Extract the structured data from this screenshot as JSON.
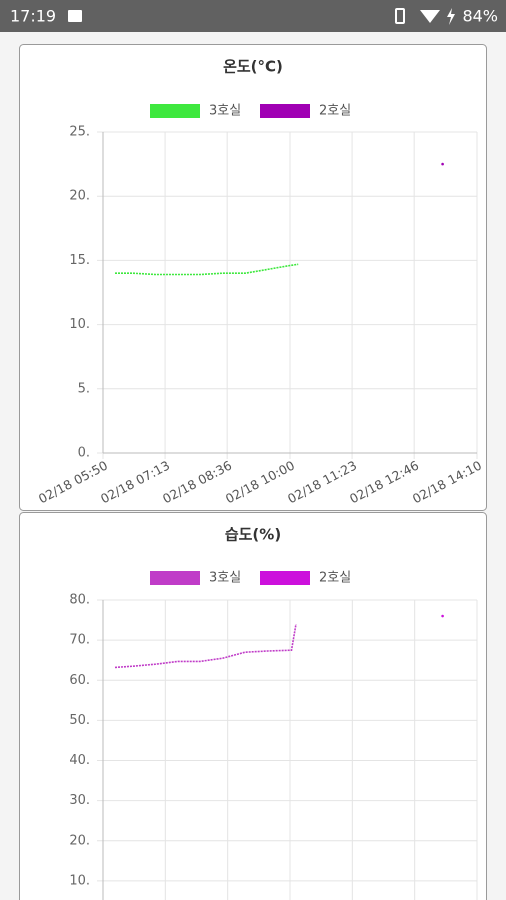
{
  "status_bar": {
    "time": "17:19",
    "battery": "84%"
  },
  "chart_data": [
    {
      "type": "line",
      "title": "온도(°C)",
      "series": [
        {
          "name": "3호실",
          "color": "#3ee83e",
          "x": [
            "02/18 06:06",
            "02/18 06:30",
            "02/18 07:00",
            "02/18 07:30",
            "02/18 08:00",
            "02/18 08:30",
            "02/18 09:00",
            "02/18 09:20",
            "02/18 09:40",
            "02/18 10:00",
            "02/18 10:11"
          ],
          "values": [
            14.0,
            14.0,
            13.9,
            13.9,
            13.9,
            14.0,
            14.0,
            14.2,
            14.4,
            14.6,
            14.7
          ]
        },
        {
          "name": "2호실",
          "color": "#a000b4",
          "x": [
            "02/18 13:24"
          ],
          "values": [
            22.5
          ]
        }
      ],
      "xlim": [
        "02/18 05:50",
        "02/18 14:10"
      ],
      "xticks": [
        "02/18 05:50",
        "02/18 07:13",
        "02/18 08:36",
        "02/18 10:00",
        "02/18 11:23",
        "02/18 12:46",
        "02/18 14:10"
      ],
      "ylim": [
        0,
        25
      ],
      "yticks": [
        {
          "value": 0,
          "label": "0."
        },
        {
          "value": 5,
          "label": "5."
        },
        {
          "value": 10,
          "label": "10."
        },
        {
          "value": 15,
          "label": "15."
        },
        {
          "value": 20,
          "label": "20."
        },
        {
          "value": 25,
          "label": "25."
        }
      ],
      "grid": true
    },
    {
      "type": "line",
      "title": "습도(%)",
      "series": [
        {
          "name": "3호실",
          "color": "#c03cc8",
          "x": [
            "02/18 06:06",
            "02/18 06:30",
            "02/18 07:00",
            "02/18 07:30",
            "02/18 08:00",
            "02/18 08:30",
            "02/18 09:00",
            "02/18 09:30",
            "02/18 10:02",
            "02/18 10:08"
          ],
          "values": [
            63.2,
            63.5,
            64.0,
            64.7,
            64.7,
            65.5,
            67.0,
            67.3,
            67.5,
            74.0
          ]
        },
        {
          "name": "2호실",
          "color": "#cc10dc",
          "x": [
            "02/18 13:24"
          ],
          "values": [
            76
          ]
        }
      ],
      "xlim": [
        "02/18 05:50",
        "02/18 14:10"
      ],
      "ylim": [
        0,
        80
      ],
      "yticks": [
        {
          "value": 10,
          "label": "10."
        },
        {
          "value": 20,
          "label": "20."
        },
        {
          "value": 30,
          "label": "30."
        },
        {
          "value": 40,
          "label": "40."
        },
        {
          "value": 50,
          "label": "50."
        },
        {
          "value": 60,
          "label": "60."
        },
        {
          "value": 70,
          "label": "70."
        },
        {
          "value": 80,
          "label": "80."
        }
      ],
      "grid": true
    }
  ]
}
